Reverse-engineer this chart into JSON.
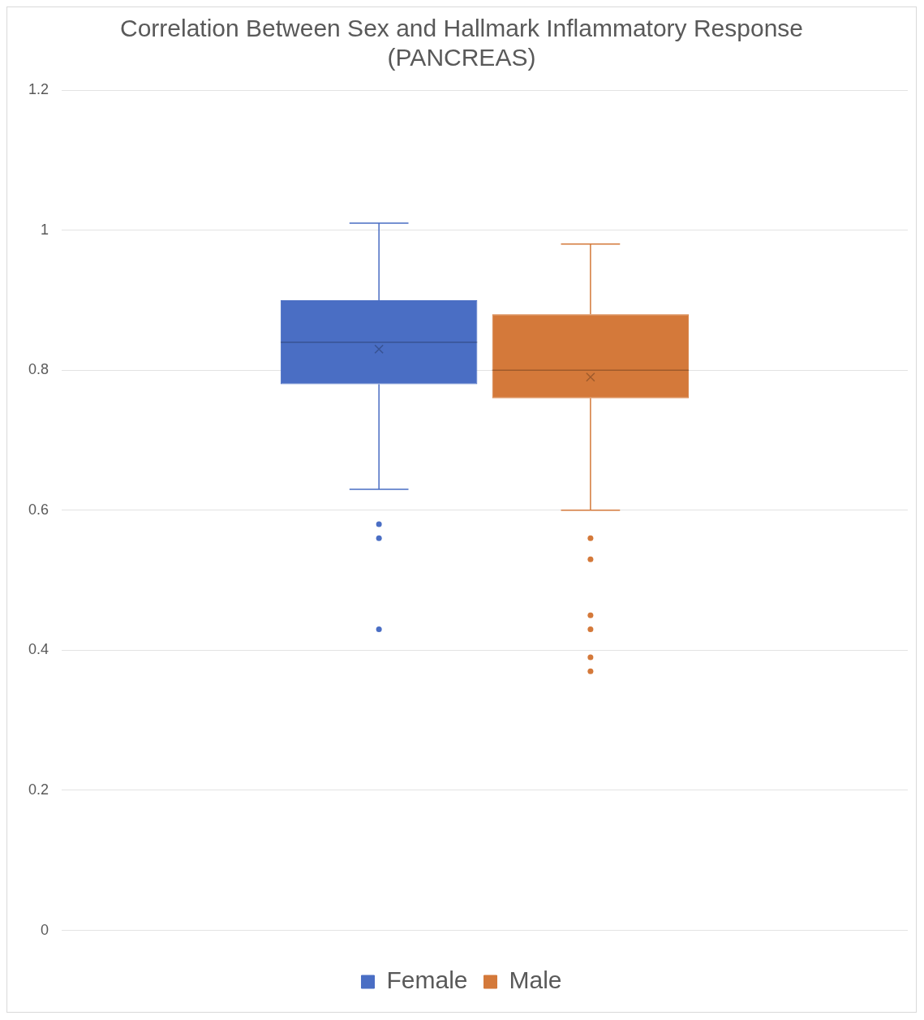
{
  "chart_data": {
    "type": "box",
    "title": "Correlation Between Sex and Hallmark Inflammatory Response (PANCREAS)",
    "categories": [
      null
    ],
    "series": [
      {
        "name": "Female",
        "color": "#4a6ec4",
        "boxes": [
          {
            "low": 0.63,
            "q1": 0.78,
            "median": 0.84,
            "q3": 0.9,
            "high": 1.01,
            "mean": 0.83,
            "outliers": [
              0.58,
              0.56,
              0.43
            ]
          }
        ]
      },
      {
        "name": "Male",
        "color": "#d4793a",
        "boxes": [
          {
            "low": 0.6,
            "q1": 0.76,
            "median": 0.8,
            "q3": 0.88,
            "high": 0.98,
            "mean": 0.79,
            "outliers": [
              0.56,
              0.53,
              0.45,
              0.43,
              0.39,
              0.37
            ]
          }
        ]
      }
    ],
    "ylim": [
      0,
      1.2
    ],
    "yticks": [
      0,
      0.2,
      0.4,
      0.6,
      0.8,
      1,
      1.2
    ],
    "grid": "y",
    "legend": "bottom"
  }
}
